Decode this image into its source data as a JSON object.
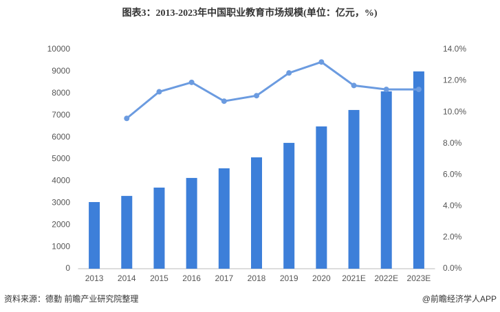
{
  "chart_data": {
    "type": "bar",
    "title": "图表3：2013-2023年中国职业教育市场规模(单位：亿元，%)",
    "categories": [
      "2013",
      "2014",
      "2015",
      "2016",
      "2017",
      "2018",
      "2019",
      "2020",
      "2021E",
      "2022E",
      "2023E"
    ],
    "series": [
      {
        "type": "bar",
        "color": "#3d7fd9",
        "values": [
          3040,
          3320,
          3700,
          4140,
          4580,
          5080,
          5740,
          6490,
          7240,
          8090,
          9000
        ]
      },
      {
        "type": "line",
        "axis": "y2",
        "color": "#6b9be0",
        "values": [
          null,
          9.6,
          11.3,
          11.9,
          10.7,
          11.05,
          12.5,
          13.2,
          11.7,
          11.45,
          11.45
        ]
      }
    ],
    "ylim": [
      0,
      10000
    ],
    "yticks": [
      0,
      1000,
      2000,
      3000,
      4000,
      5000,
      6000,
      7000,
      8000,
      9000,
      10000
    ],
    "y2lim": [
      0,
      14
    ],
    "y2ticks": [
      {
        "value": 0,
        "label": "0.0%"
      },
      {
        "value": 2,
        "label": "2.0%"
      },
      {
        "value": 4,
        "label": "4.0%"
      },
      {
        "value": 6,
        "label": "6.0%"
      },
      {
        "value": 8,
        "label": "8.0%"
      },
      {
        "value": 10,
        "label": "10.0%"
      },
      {
        "value": 12,
        "label": "12.0%"
      },
      {
        "value": 14,
        "label": "14.0%"
      }
    ],
    "grid": false,
    "source": "资料来源：德勤 前瞻产业研究院整理",
    "credit": "@前瞻经济学人APP"
  }
}
